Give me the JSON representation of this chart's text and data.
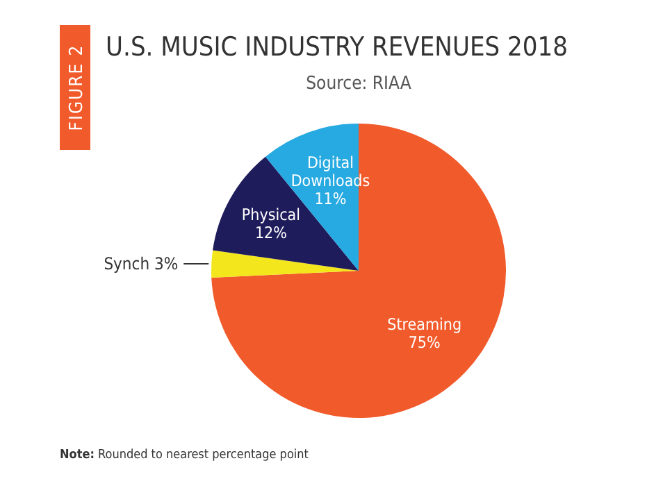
{
  "chart_data": {
    "type": "pie",
    "title": "U.S. MUSIC INDUSTRY REVENUES 2018",
    "subtitle": "Source: RIAA",
    "annotations": [
      "FIGURE 2",
      "Note: Rounded to nearest percentage point"
    ],
    "categories": [
      "Streaming",
      "Synch",
      "Physical",
      "Digital Downloads"
    ],
    "values": [
      75,
      3,
      12,
      11
    ],
    "value_labels": [
      "75%",
      "3%",
      "12%",
      "11%"
    ],
    "colors": [
      "#f15a2b",
      "#f4e61c",
      "#1f1c5c",
      "#27a9e1"
    ]
  }
}
